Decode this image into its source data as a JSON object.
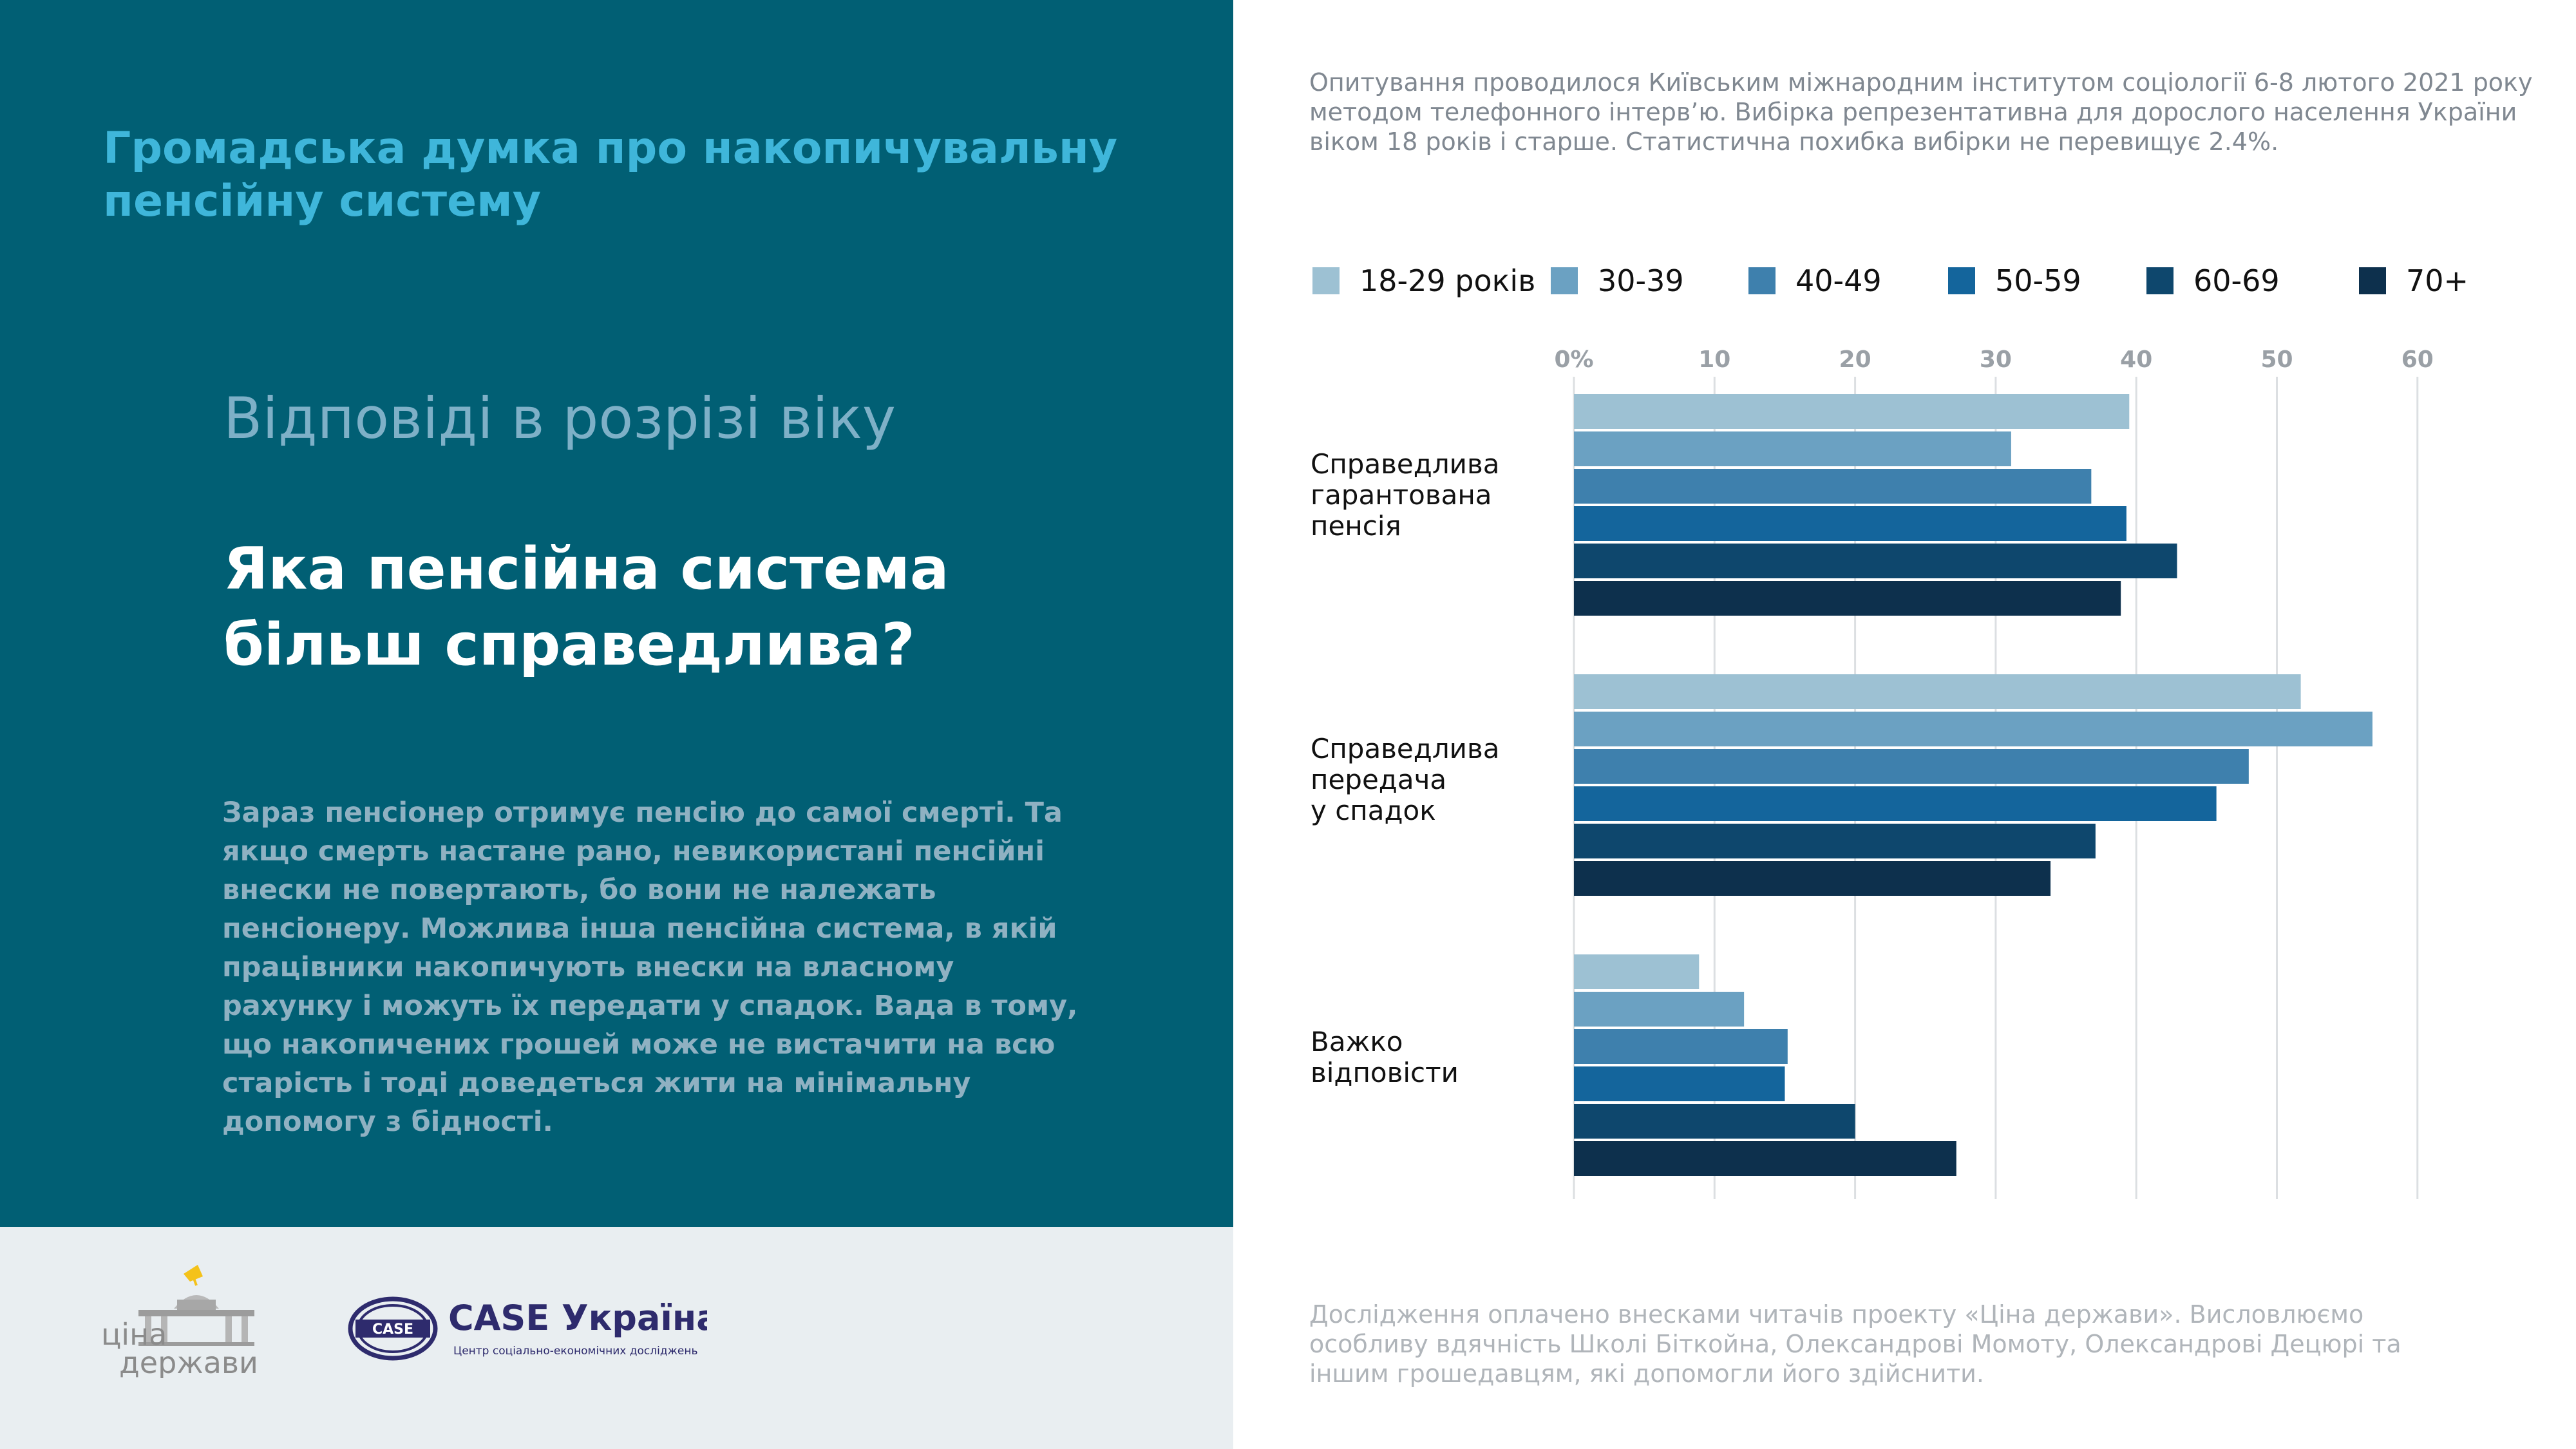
{
  "left": {
    "title": "Громадська думка про накопичувальну пенсійну систему",
    "subtitle": "Відповіді в розрізі віку",
    "question_line1": "Яка пенсійна система",
    "question_line2": "більш справедлива?",
    "description": "Зараз пенсіонер отримує пенсію до самої смерті. Та якщо смерть настане рано, невикористані пенсійні внески не повертають, бо вони не належать пенсіонеру. Можлива інша пенсійна система, в якій працівники накопичують внески на власному рахунку і можуть їх передати у спадок. Вада в тому, що накопичених грошей може не вистачити на всю старість і тоді доведеться жити на мінімальну допомогу з бідності."
  },
  "logos": {
    "cina_line1": "ціна",
    "cina_line2": "держави",
    "case_emblem": "CASE",
    "case_name": "CASE Україна",
    "case_tagline": "Центр соціально-економічних досліджень"
  },
  "survey_note": "Опитування проводилося Київським міжнародним інститутом соціології 6-8 лютого 2021 року методом телефонного інтерв’ю. Вибірка репрезентативна для дорослого населення України віком 18 років і старше. Статистична похибка вибірки не перевищує 2.4%.",
  "footnote": "Дослідження оплачено внесками читачів проекту «Ціна держави». Висловлюємо особливу вдячність Школі Біткойна, Олександрові Момоту, Олександрові Децюрі та іншим грошедавцям, які допомогли його здійснити.",
  "colors": {
    "left_panel": "#015f74",
    "bottom_band": "#e9eef1",
    "title_accent": "#3fb6da"
  },
  "chart_data": {
    "type": "bar",
    "orientation": "horizontal",
    "categories": [
      [
        "Справедлива",
        "гарантована",
        "пенсія"
      ],
      [
        "Справедлива",
        "передача",
        "у спадок"
      ],
      [
        "Важко",
        "відповісти"
      ]
    ],
    "series": [
      {
        "name": "18-29 років",
        "color": "#9dc1d3",
        "values": [
          39.5,
          51.7,
          8.9
        ]
      },
      {
        "name": "30-39",
        "color": "#6ba1c2",
        "values": [
          31.1,
          56.8,
          12.1
        ]
      },
      {
        "name": "40-49",
        "color": "#3e80ad",
        "values": [
          36.8,
          48.0,
          15.2
        ]
      },
      {
        "name": "50-59",
        "color": "#14659c",
        "values": [
          39.3,
          45.7,
          15.0
        ]
      },
      {
        "name": "60-69",
        "color": "#0e476d",
        "values": [
          42.9,
          37.1,
          20.0
        ]
      },
      {
        "name": "70+",
        "color": "#0d304d",
        "values": [
          38.9,
          33.9,
          27.2
        ]
      }
    ],
    "xlim": [
      0,
      60
    ],
    "ticks": [
      "0%",
      "10",
      "20",
      "30",
      "40",
      "50",
      "60"
    ],
    "grid": true,
    "legend_position": "top"
  }
}
